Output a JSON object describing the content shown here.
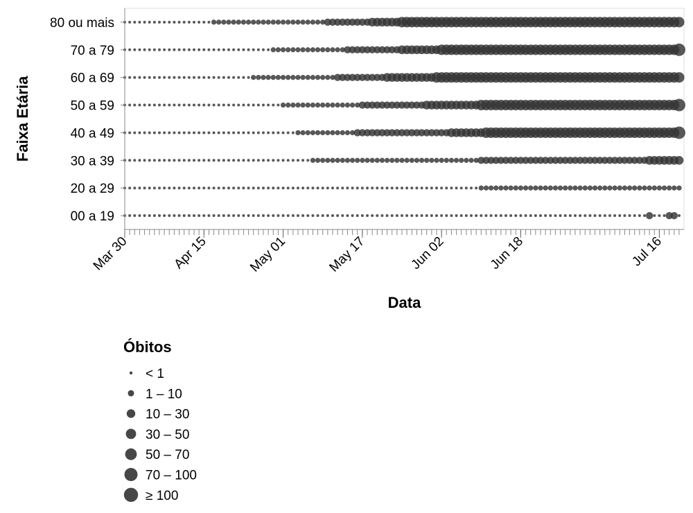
{
  "chart_data": {
    "type": "scatter",
    "title": "",
    "xlabel": "Data",
    "ylabel": "Faixa Etária",
    "x_start": "2020-03-30",
    "x_end": "2020-07-20",
    "x_ticks": [
      {
        "date": "2020-03-30",
        "label": "Mar 30"
      },
      {
        "date": "2020-04-15",
        "label": "Apr 15"
      },
      {
        "date": "2020-05-01",
        "label": "May 01"
      },
      {
        "date": "2020-05-17",
        "label": "May 17"
      },
      {
        "date": "2020-06-02",
        "label": "Jun 02"
      },
      {
        "date": "2020-06-18",
        "label": "Jun 18"
      },
      {
        "date": "2020-07-16",
        "label": "Jul 16"
      }
    ],
    "categories": [
      "80 ou mais",
      "70 a 79",
      "60 a 69",
      "50 a 59",
      "40 a 49",
      "30 a 39",
      "20 a 29",
      "00 a 19"
    ],
    "legend_title": "Óbitos",
    "legend": [
      {
        "label": "< 1",
        "size": 0.5
      },
      {
        "label": "1 – 10",
        "size": 5
      },
      {
        "label": "10 – 30",
        "size": 20
      },
      {
        "label": "30 – 50",
        "size": 40
      },
      {
        "label": "50 – 70",
        "size": 60
      },
      {
        "label": "70 – 100",
        "size": 85
      },
      {
        "label": "≥ 100",
        "size": 120
      }
    ],
    "size_domain": [
      0,
      120
    ],
    "mark_color": "#333333",
    "series": [
      {
        "category": "80 ou mais",
        "segments": [
          {
            "from": "2020-03-30",
            "to": "2020-04-01",
            "size": 0.5
          },
          {
            "from": "2020-04-02",
            "to": "2020-04-16",
            "size": 5
          },
          {
            "from": "2020-04-17",
            "to": "2020-05-09",
            "size": 20
          },
          {
            "from": "2020-05-10",
            "to": "2020-05-18",
            "size": 40
          },
          {
            "from": "2020-05-19",
            "to": "2020-05-24",
            "size": 60
          },
          {
            "from": "2020-05-25",
            "to": "2020-07-20",
            "size": 85
          }
        ]
      },
      {
        "category": "70 a 79",
        "segments": [
          {
            "from": "2020-03-30",
            "to": "2020-04-07",
            "size": 0.5
          },
          {
            "from": "2020-04-08",
            "to": "2020-04-28",
            "size": 5
          },
          {
            "from": "2020-04-29",
            "to": "2020-05-13",
            "size": 20
          },
          {
            "from": "2020-05-14",
            "to": "2020-05-24",
            "size": 40
          },
          {
            "from": "2020-05-25",
            "to": "2020-06-01",
            "size": 60
          },
          {
            "from": "2020-06-02",
            "to": "2020-07-20",
            "size": 85
          }
        ]
      },
      {
        "category": "60 a 69",
        "segments": [
          {
            "from": "2020-03-30",
            "to": "2020-04-08",
            "size": 0.5
          },
          {
            "from": "2020-04-09",
            "to": "2020-04-24",
            "size": 5
          },
          {
            "from": "2020-04-25",
            "to": "2020-05-11",
            "size": 20
          },
          {
            "from": "2020-05-12",
            "to": "2020-05-21",
            "size": 40
          },
          {
            "from": "2020-05-22",
            "to": "2020-05-31",
            "size": 60
          },
          {
            "from": "2020-06-01",
            "to": "2020-07-20",
            "size": 85
          }
        ]
      },
      {
        "category": "50 a 59",
        "segments": [
          {
            "from": "2020-03-30",
            "to": "2020-04-05",
            "size": 0.5
          },
          {
            "from": "2020-04-06",
            "to": "2020-04-30",
            "size": 5
          },
          {
            "from": "2020-05-01",
            "to": "2020-05-16",
            "size": 20
          },
          {
            "from": "2020-05-17",
            "to": "2020-05-29",
            "size": 40
          },
          {
            "from": "2020-05-30",
            "to": "2020-06-09",
            "size": 60
          },
          {
            "from": "2020-06-10",
            "to": "2020-07-20",
            "size": 85
          }
        ]
      },
      {
        "category": "40 a 49",
        "segments": [
          {
            "from": "2020-03-30",
            "to": "2020-04-01",
            "size": 0.5
          },
          {
            "from": "2020-04-02",
            "to": "2020-05-03",
            "size": 5
          },
          {
            "from": "2020-05-04",
            "to": "2020-05-15",
            "size": 20
          },
          {
            "from": "2020-05-16",
            "to": "2020-06-03",
            "size": 40
          },
          {
            "from": "2020-06-04",
            "to": "2020-06-10",
            "size": 60
          },
          {
            "from": "2020-06-11",
            "to": "2020-07-20",
            "size": 85
          }
        ]
      },
      {
        "category": "30 a 39",
        "segments": [
          {
            "from": "2020-03-30",
            "to": "2020-05-06",
            "size": 5
          },
          {
            "from": "2020-05-07",
            "to": "2020-06-09",
            "size": 20
          },
          {
            "from": "2020-06-10",
            "to": "2020-07-13",
            "size": 40
          },
          {
            "from": "2020-07-14",
            "to": "2020-07-20",
            "size": 60
          }
        ]
      },
      {
        "category": "20 a 29",
        "segments": [
          {
            "from": "2020-03-30",
            "to": "2020-04-03",
            "size": 0.5
          },
          {
            "from": "2020-04-04",
            "to": "2020-06-09",
            "size": 5
          },
          {
            "from": "2020-06-10",
            "to": "2020-07-20",
            "size": 20
          }
        ]
      },
      {
        "category": "00 a 19",
        "segments": [
          {
            "from": "2020-03-30",
            "to": "2020-04-12",
            "size": 0.5
          },
          {
            "from": "2020-04-13",
            "to": "2020-07-20",
            "size": 5
          }
        ]
      }
    ],
    "highlights": [
      {
        "category": "00 a 19",
        "date": "2020-07-14",
        "size": 40
      },
      {
        "category": "00 a 19",
        "date": "2020-07-18",
        "size": 40
      },
      {
        "category": "00 a 19",
        "date": "2020-07-19",
        "size": 40
      },
      {
        "category": "50 a 59",
        "date": "2020-07-20",
        "size": 120
      },
      {
        "category": "70 a 79",
        "date": "2020-07-20",
        "size": 120
      },
      {
        "category": "40 a 49",
        "date": "2020-07-20",
        "size": 120
      }
    ]
  }
}
